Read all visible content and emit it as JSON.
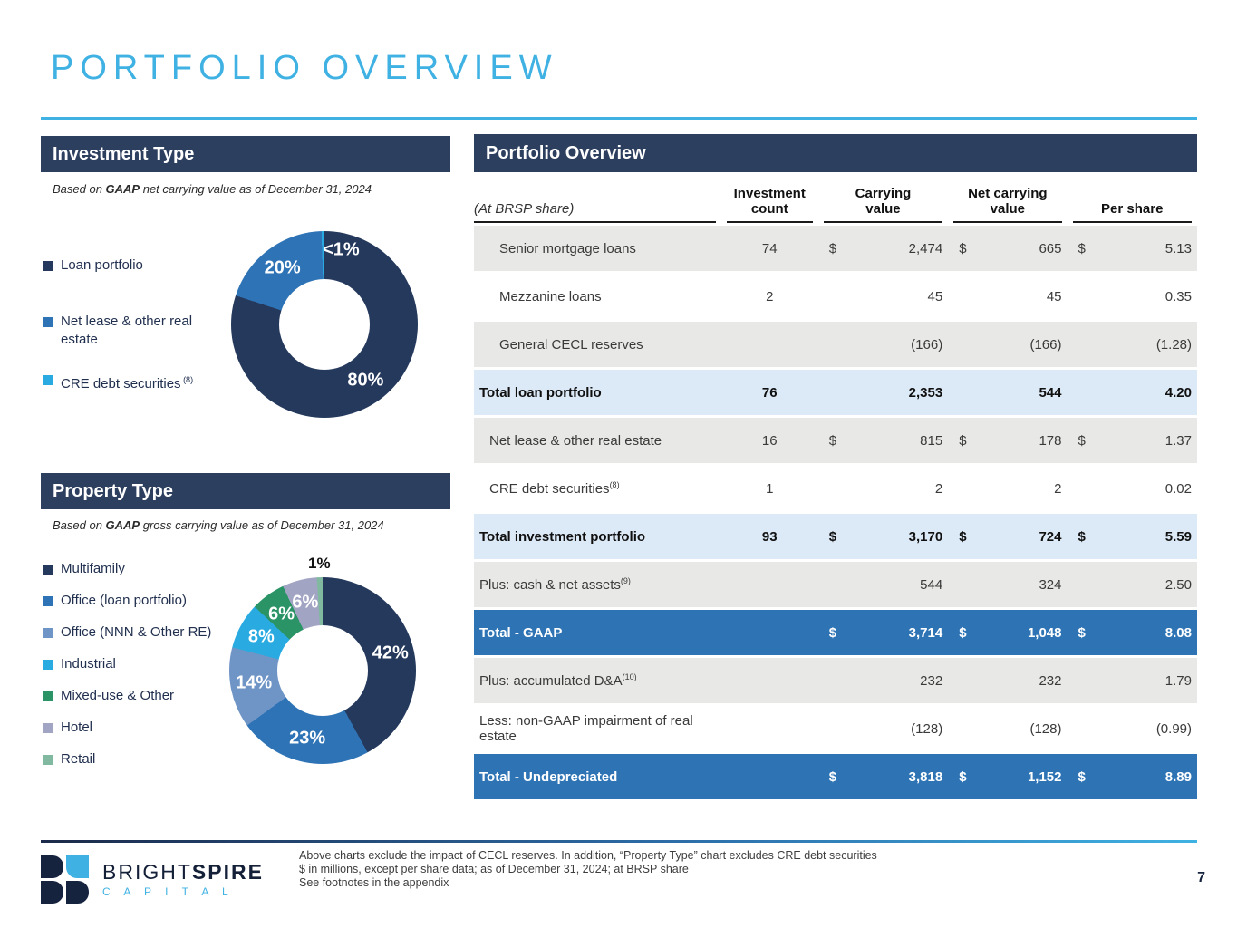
{
  "page": {
    "title": "PORTFOLIO OVERVIEW",
    "page_number": "7"
  },
  "colors": {
    "accent_light_blue": "#3fb1e3",
    "band_navy": "#2d3f5f",
    "table_total_blue": "#2e74b5",
    "table_subtotal_blue": "#dce9f6",
    "table_gray": "#e8e8e6"
  },
  "investment_type": {
    "header": "Investment Type",
    "subtitle_prefix": "Based on ",
    "subtitle_bold": "GAAP",
    "subtitle_rest": " net carrying value as of December 31, 2024"
  },
  "property_type": {
    "header": "Property Type",
    "subtitle_prefix": "Based on ",
    "subtitle_bold": "GAAP",
    "subtitle_rest": " gross carrying value as of December 31, 2024"
  },
  "chart_data": [
    {
      "type": "donut",
      "title": "Investment Type",
      "subtitle": "Based on GAAP net carrying value as of December 31, 2024",
      "slices": [
        {
          "label": "Loan portfolio",
          "pct": 80,
          "display": "80%",
          "color": "#24395c"
        },
        {
          "label": "Net lease & other real estate",
          "pct": 19.5,
          "display": "20%",
          "color": "#2e73b5"
        },
        {
          "label": "CRE debt securities",
          "sup": "(8)",
          "pct": 0.5,
          "display": "<1%",
          "color": "#29abe2",
          "label_placement": "top-inside"
        }
      ]
    },
    {
      "type": "donut",
      "title": "Property Type",
      "subtitle": "Based on GAAP gross carrying value as of December 31, 2024",
      "slices": [
        {
          "label": "Multifamily",
          "pct": 42,
          "display": "42%",
          "color": "#24395c"
        },
        {
          "label": "Office (loan portfolio)",
          "pct": 23,
          "display": "23%",
          "color": "#2e73b5"
        },
        {
          "label": "Office (NNN & Other RE)",
          "pct": 14,
          "display": "14%",
          "color": "#6f94c6"
        },
        {
          "label": "Industrial",
          "pct": 8,
          "display": "8%",
          "color": "#29abe2"
        },
        {
          "label": "Mixed-use & Other",
          "pct": 6,
          "display": "6%",
          "color": "#2b9467"
        },
        {
          "label": "Hotel",
          "pct": 6,
          "display": "6%",
          "color": "#a2a4c3"
        },
        {
          "label": "Retail",
          "pct": 1,
          "display": "1%",
          "color": "#80b9a0",
          "label_placement": "top-outside"
        }
      ]
    }
  ],
  "table": {
    "band_title": "Portfolio Overview",
    "corner_label": "(At BRSP share)",
    "columns": [
      "Investment count",
      "Carrying value",
      "Net carrying value",
      "Per share"
    ],
    "rows": [
      {
        "label": "Senior mortgage loans",
        "indent": 2,
        "style": "gray",
        "count": "74",
        "dollars": true,
        "values": [
          "2,474",
          "665",
          "5.13"
        ]
      },
      {
        "label": "Mezzanine loans",
        "indent": 2,
        "style": "white",
        "count": "2",
        "dollars": false,
        "values": [
          "45",
          "45",
          "0.35"
        ]
      },
      {
        "label": "General CECL reserves",
        "indent": 2,
        "style": "gray",
        "count": "",
        "dollars": false,
        "values": [
          "(166)",
          "(166)",
          "(1.28)"
        ]
      },
      {
        "label": "Total loan portfolio",
        "indent": 0,
        "style": "subtotal",
        "count": "76",
        "dollars": false,
        "values": [
          "2,353",
          "544",
          "4.20"
        ]
      },
      {
        "label": "Net lease & other real estate",
        "indent": 1,
        "style": "gray",
        "count": "16",
        "dollars": true,
        "values": [
          "815",
          "178",
          "1.37"
        ]
      },
      {
        "label": "CRE debt securities",
        "sup": "(8)",
        "indent": 1,
        "style": "white",
        "count": "1",
        "dollars": false,
        "values": [
          "2",
          "2",
          "0.02"
        ]
      },
      {
        "label": "Total investment portfolio",
        "indent": 0,
        "style": "subtotal",
        "count": "93",
        "dollars": true,
        "values": [
          "3,170",
          "724",
          "5.59"
        ]
      },
      {
        "label": "Plus: cash & net assets",
        "sup": "(9)",
        "indent": 0,
        "style": "gray",
        "count": "",
        "dollars": false,
        "values": [
          "544",
          "324",
          "2.50"
        ]
      },
      {
        "label": "Total - GAAP",
        "indent": 0,
        "style": "total",
        "count": "",
        "dollars": true,
        "values": [
          "3,714",
          "1,048",
          "8.08"
        ]
      },
      {
        "label": "Plus: accumulated D&A",
        "sup": "(10)",
        "indent": 0,
        "style": "gray",
        "count": "",
        "dollars": false,
        "values": [
          "232",
          "232",
          "1.79"
        ]
      },
      {
        "label": "Less: non-GAAP impairment of real estate",
        "indent": 0,
        "style": "white",
        "count": "",
        "dollars": false,
        "values": [
          "(128)",
          "(128)",
          "(0.99)"
        ]
      },
      {
        "label": "Total - Undepreciated",
        "indent": 0,
        "style": "total",
        "count": "",
        "dollars": true,
        "values": [
          "3,818",
          "1,152",
          "8.89"
        ]
      }
    ]
  },
  "footer": {
    "logo_text_1a": "BRIGHT",
    "logo_text_1b": "SPIRE",
    "logo_text_2": "C A P I T A L",
    "notes": [
      "Above charts exclude the impact of CECL reserves. In addition, “Property Type” chart excludes CRE debt securities",
      "$ in millions, except per share data; as of December 31, 2024; at BRSP share",
      "See footnotes in the appendix"
    ]
  }
}
